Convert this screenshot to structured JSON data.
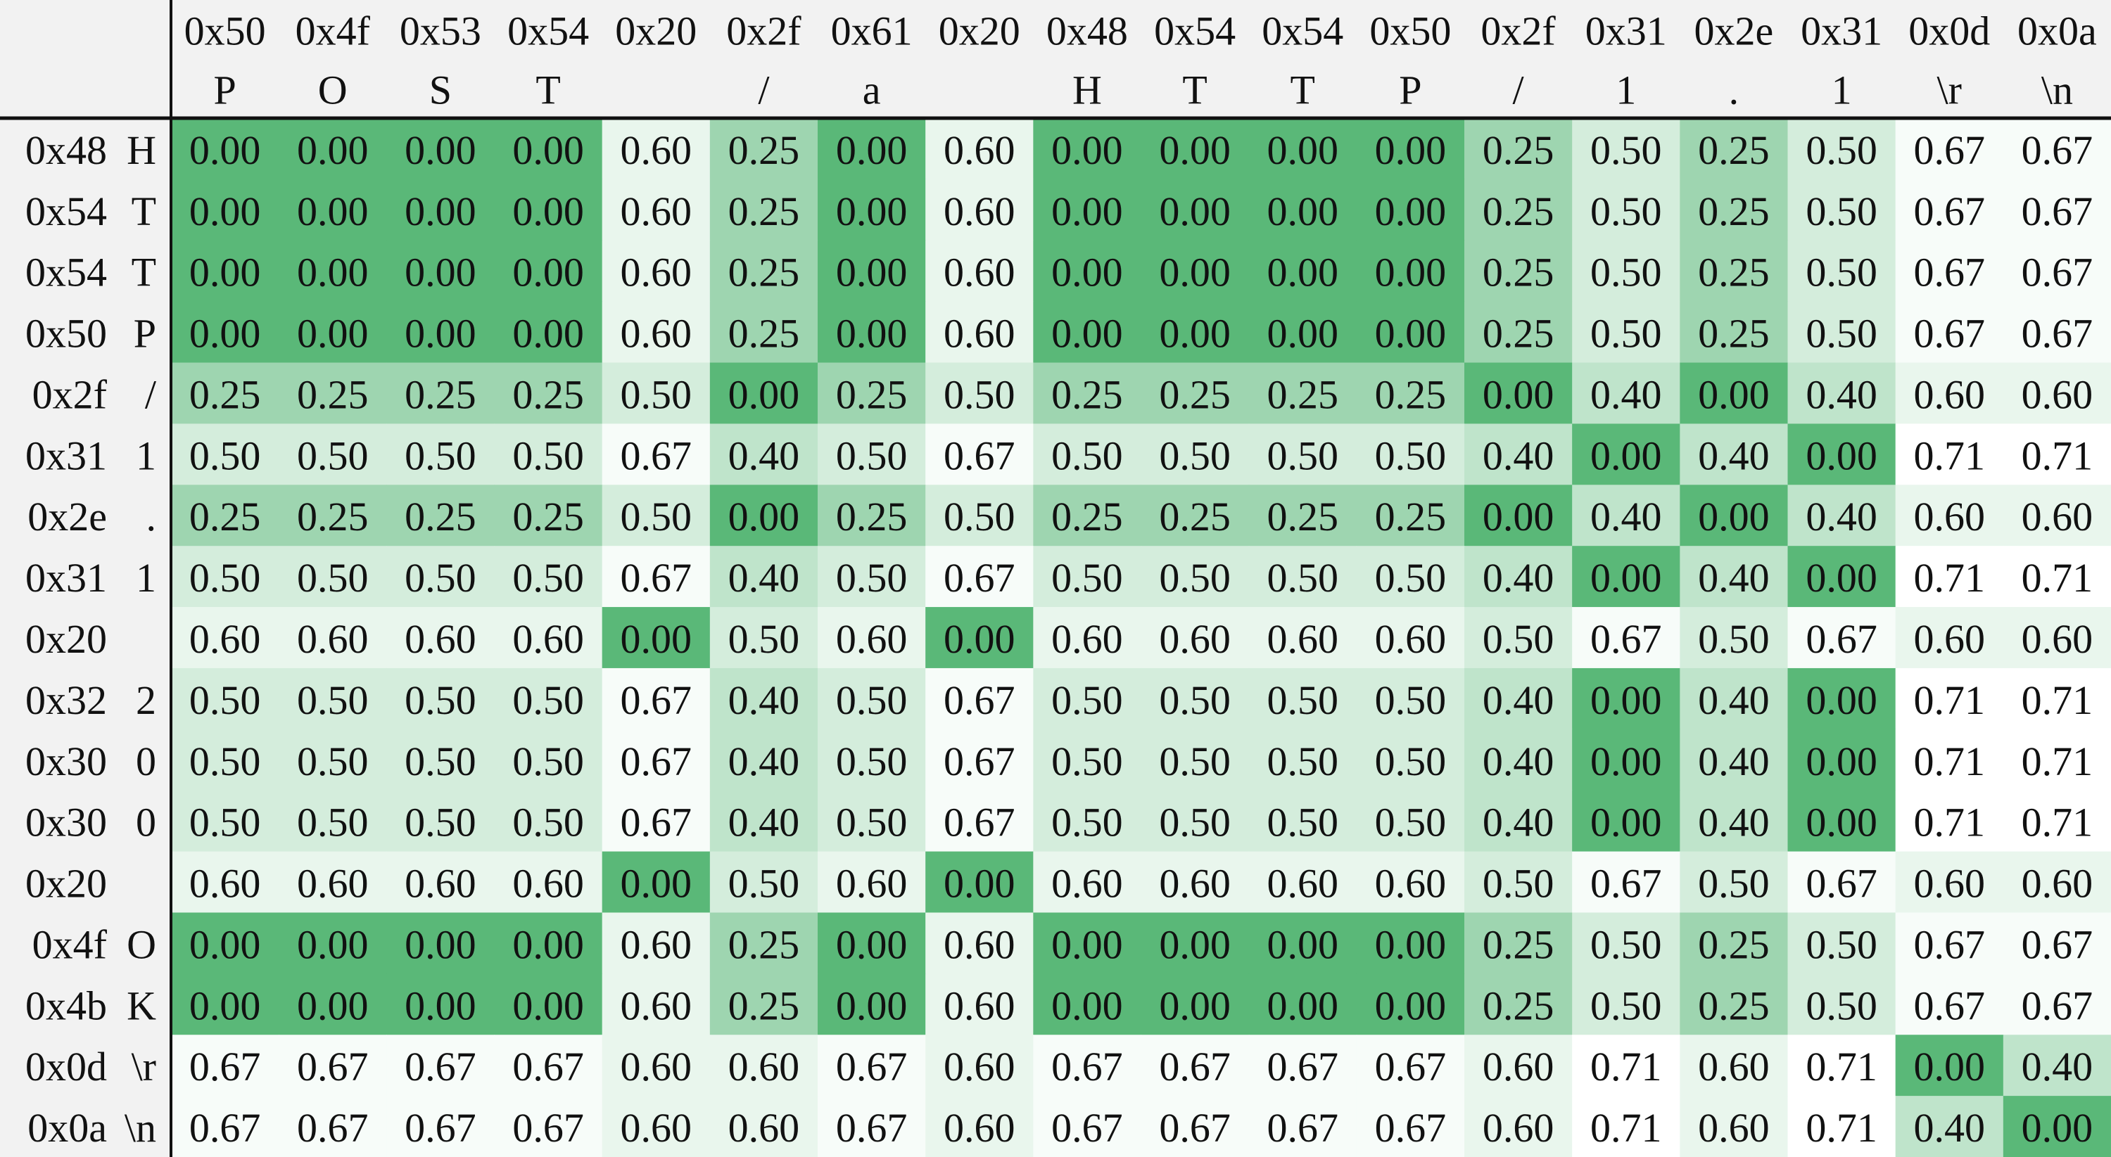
{
  "chart_data": {
    "type": "heatmap",
    "columns": [
      {
        "hex": "0x50",
        "char": "P"
      },
      {
        "hex": "0x4f",
        "char": "O"
      },
      {
        "hex": "0x53",
        "char": "S"
      },
      {
        "hex": "0x54",
        "char": "T"
      },
      {
        "hex": "0x20",
        "char": ""
      },
      {
        "hex": "0x2f",
        "char": "/"
      },
      {
        "hex": "0x61",
        "char": "a"
      },
      {
        "hex": "0x20",
        "char": ""
      },
      {
        "hex": "0x48",
        "char": "H"
      },
      {
        "hex": "0x54",
        "char": "T"
      },
      {
        "hex": "0x54",
        "char": "T"
      },
      {
        "hex": "0x50",
        "char": "P"
      },
      {
        "hex": "0x2f",
        "char": "/"
      },
      {
        "hex": "0x31",
        "char": "1"
      },
      {
        "hex": "0x2e",
        "char": "."
      },
      {
        "hex": "0x31",
        "char": "1"
      },
      {
        "hex": "0x0d",
        "char": "\\r"
      },
      {
        "hex": "0x0a",
        "char": "\\n"
      }
    ],
    "rows": [
      {
        "hex": "0x48",
        "char": "H"
      },
      {
        "hex": "0x54",
        "char": "T"
      },
      {
        "hex": "0x54",
        "char": "T"
      },
      {
        "hex": "0x50",
        "char": "P"
      },
      {
        "hex": "0x2f",
        "char": "/"
      },
      {
        "hex": "0x31",
        "char": "1"
      },
      {
        "hex": "0x2e",
        "char": "."
      },
      {
        "hex": "0x31",
        "char": "1"
      },
      {
        "hex": "0x20",
        "char": ""
      },
      {
        "hex": "0x32",
        "char": "2"
      },
      {
        "hex": "0x30",
        "char": "0"
      },
      {
        "hex": "0x30",
        "char": "0"
      },
      {
        "hex": "0x20",
        "char": ""
      },
      {
        "hex": "0x4f",
        "char": "O"
      },
      {
        "hex": "0x4b",
        "char": "K"
      },
      {
        "hex": "0x0d",
        "char": "\\r"
      },
      {
        "hex": "0x0a",
        "char": "\\n"
      }
    ],
    "values": [
      [
        "0.00",
        "0.00",
        "0.00",
        "0.00",
        "0.60",
        "0.25",
        "0.00",
        "0.60",
        "0.00",
        "0.00",
        "0.00",
        "0.00",
        "0.25",
        "0.50",
        "0.25",
        "0.50",
        "0.67",
        "0.67"
      ],
      [
        "0.00",
        "0.00",
        "0.00",
        "0.00",
        "0.60",
        "0.25",
        "0.00",
        "0.60",
        "0.00",
        "0.00",
        "0.00",
        "0.00",
        "0.25",
        "0.50",
        "0.25",
        "0.50",
        "0.67",
        "0.67"
      ],
      [
        "0.00",
        "0.00",
        "0.00",
        "0.00",
        "0.60",
        "0.25",
        "0.00",
        "0.60",
        "0.00",
        "0.00",
        "0.00",
        "0.00",
        "0.25",
        "0.50",
        "0.25",
        "0.50",
        "0.67",
        "0.67"
      ],
      [
        "0.00",
        "0.00",
        "0.00",
        "0.00",
        "0.60",
        "0.25",
        "0.00",
        "0.60",
        "0.00",
        "0.00",
        "0.00",
        "0.00",
        "0.25",
        "0.50",
        "0.25",
        "0.50",
        "0.67",
        "0.67"
      ],
      [
        "0.25",
        "0.25",
        "0.25",
        "0.25",
        "0.50",
        "0.00",
        "0.25",
        "0.50",
        "0.25",
        "0.25",
        "0.25",
        "0.25",
        "0.00",
        "0.40",
        "0.00",
        "0.40",
        "0.60",
        "0.60"
      ],
      [
        "0.50",
        "0.50",
        "0.50",
        "0.50",
        "0.67",
        "0.40",
        "0.50",
        "0.67",
        "0.50",
        "0.50",
        "0.50",
        "0.50",
        "0.40",
        "0.00",
        "0.40",
        "0.00",
        "0.71",
        "0.71"
      ],
      [
        "0.25",
        "0.25",
        "0.25",
        "0.25",
        "0.50",
        "0.00",
        "0.25",
        "0.50",
        "0.25",
        "0.25",
        "0.25",
        "0.25",
        "0.00",
        "0.40",
        "0.00",
        "0.40",
        "0.60",
        "0.60"
      ],
      [
        "0.50",
        "0.50",
        "0.50",
        "0.50",
        "0.67",
        "0.40",
        "0.50",
        "0.67",
        "0.50",
        "0.50",
        "0.50",
        "0.50",
        "0.40",
        "0.00",
        "0.40",
        "0.00",
        "0.71",
        "0.71"
      ],
      [
        "0.60",
        "0.60",
        "0.60",
        "0.60",
        "0.00",
        "0.50",
        "0.60",
        "0.00",
        "0.60",
        "0.60",
        "0.60",
        "0.60",
        "0.50",
        "0.67",
        "0.50",
        "0.67",
        "0.60",
        "0.60"
      ],
      [
        "0.50",
        "0.50",
        "0.50",
        "0.50",
        "0.67",
        "0.40",
        "0.50",
        "0.67",
        "0.50",
        "0.50",
        "0.50",
        "0.50",
        "0.40",
        "0.00",
        "0.40",
        "0.00",
        "0.71",
        "0.71"
      ],
      [
        "0.50",
        "0.50",
        "0.50",
        "0.50",
        "0.67",
        "0.40",
        "0.50",
        "0.67",
        "0.50",
        "0.50",
        "0.50",
        "0.50",
        "0.40",
        "0.00",
        "0.40",
        "0.00",
        "0.71",
        "0.71"
      ],
      [
        "0.50",
        "0.50",
        "0.50",
        "0.50",
        "0.67",
        "0.40",
        "0.50",
        "0.67",
        "0.50",
        "0.50",
        "0.50",
        "0.50",
        "0.40",
        "0.00",
        "0.40",
        "0.00",
        "0.71",
        "0.71"
      ],
      [
        "0.60",
        "0.60",
        "0.60",
        "0.60",
        "0.00",
        "0.50",
        "0.60",
        "0.00",
        "0.60",
        "0.60",
        "0.60",
        "0.60",
        "0.50",
        "0.67",
        "0.50",
        "0.67",
        "0.60",
        "0.60"
      ],
      [
        "0.00",
        "0.00",
        "0.00",
        "0.00",
        "0.60",
        "0.25",
        "0.00",
        "0.60",
        "0.00",
        "0.00",
        "0.00",
        "0.00",
        "0.25",
        "0.50",
        "0.25",
        "0.50",
        "0.67",
        "0.67"
      ],
      [
        "0.00",
        "0.00",
        "0.00",
        "0.00",
        "0.60",
        "0.25",
        "0.00",
        "0.60",
        "0.00",
        "0.00",
        "0.00",
        "0.00",
        "0.25",
        "0.50",
        "0.25",
        "0.50",
        "0.67",
        "0.67"
      ],
      [
        "0.67",
        "0.67",
        "0.67",
        "0.67",
        "0.60",
        "0.60",
        "0.67",
        "0.60",
        "0.67",
        "0.67",
        "0.67",
        "0.67",
        "0.60",
        "0.71",
        "0.60",
        "0.71",
        "0.00",
        "0.40"
      ],
      [
        "0.67",
        "0.67",
        "0.67",
        "0.67",
        "0.60",
        "0.60",
        "0.67",
        "0.60",
        "0.67",
        "0.67",
        "0.67",
        "0.67",
        "0.60",
        "0.71",
        "0.60",
        "0.71",
        "0.40",
        "0.00"
      ]
    ],
    "color_scale": {
      "min_value": 0,
      "max_value": 0.71,
      "low_color": "#5ab878",
      "high_color": "#ffffff"
    },
    "colors": {
      "line": "#111111",
      "header_background": "#f2f2f2"
    }
  }
}
